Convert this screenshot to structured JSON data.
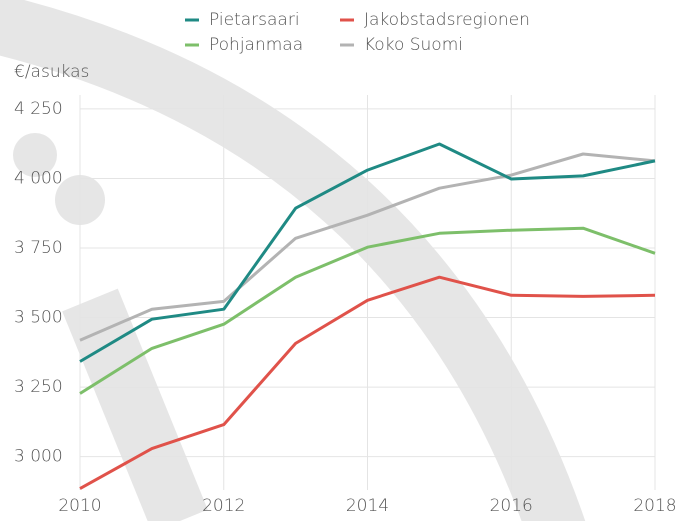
{
  "chart_data": {
    "type": "line",
    "y_label": "€/asukas",
    "x": [
      2010,
      2011,
      2012,
      2013,
      2014,
      2015,
      2016,
      2017,
      2018
    ],
    "xlim": [
      2010,
      2018
    ],
    "xticks": [
      2010,
      2012,
      2014,
      2016,
      2018
    ],
    "ylim": [
      2880,
      4300
    ],
    "yticks": [
      {
        "value": 3000,
        "label": "3 000"
      },
      {
        "value": 3250,
        "label": "3 250"
      },
      {
        "value": 3500,
        "label": "3 500"
      },
      {
        "value": 3750,
        "label": "3 750"
      },
      {
        "value": 4000,
        "label": "4 000"
      },
      {
        "value": 4250,
        "label": "4 250"
      }
    ],
    "grid": true,
    "series": [
      {
        "name": "Pietarsaari",
        "color": "#1f8a84",
        "values": [
          3342,
          3494,
          3530,
          3893,
          4030,
          4124,
          3998,
          4009,
          4063
        ]
      },
      {
        "name": "Jakobstadsregionen",
        "color": "#e0524a",
        "values": [
          2885,
          3029,
          3115,
          3407,
          3562,
          3645,
          3580,
          3576,
          3580
        ]
      },
      {
        "name": "Pohjanmaa",
        "color": "#7dbf6a",
        "values": [
          3227,
          3389,
          3476,
          3645,
          3753,
          3803,
          3814,
          3821,
          3731
        ]
      },
      {
        "name": "Koko Suomi",
        "color": "#b3b3b3",
        "values": [
          3418,
          3530,
          3558,
          3785,
          3868,
          3965,
          4012,
          4088,
          4063
        ]
      }
    ]
  }
}
